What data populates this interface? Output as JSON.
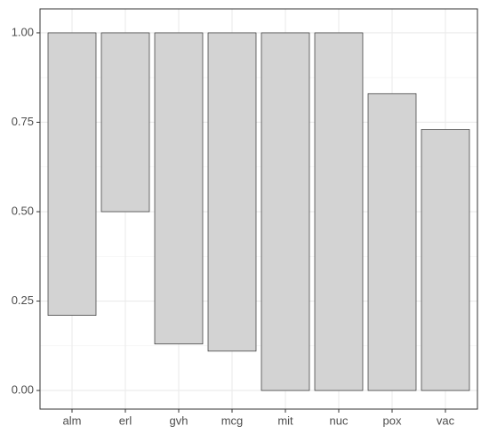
{
  "chart_data": {
    "type": "floating-bar",
    "categories": [
      "alm",
      "erl",
      "gvh",
      "mcg",
      "mit",
      "nuc",
      "pox",
      "vac"
    ],
    "low": [
      0.21,
      0.5,
      0.13,
      0.11,
      0.0,
      0.0,
      0.0,
      0.0
    ],
    "high": [
      1.0,
      1.0,
      1.0,
      1.0,
      1.0,
      1.0,
      0.83,
      0.73
    ],
    "color": "#d3d3d3",
    "ylim": [
      -0.052,
      1.067
    ],
    "yticks": [
      {
        "value": 0,
        "label": "0.00"
      },
      {
        "value": 0.25,
        "label": "0.25"
      },
      {
        "value": 0.5,
        "label": "0.50"
      },
      {
        "value": 0.75,
        "label": "0.75"
      },
      {
        "value": 1,
        "label": "1.00"
      }
    ],
    "grid": true
  }
}
